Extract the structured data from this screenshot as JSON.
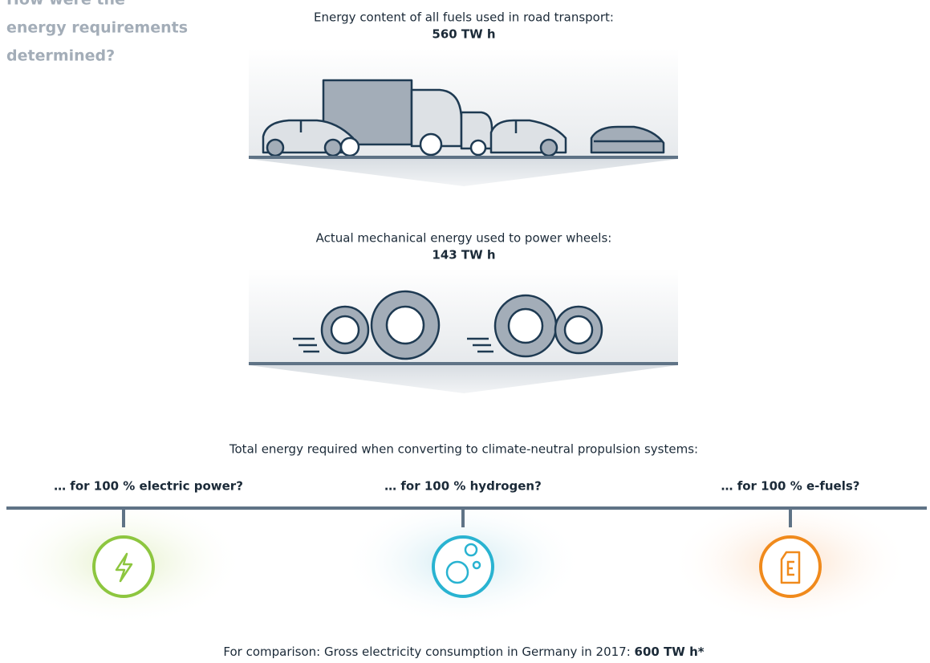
{
  "sidebar": {
    "lines": [
      "How were the",
      "energy requirements",
      "determined?"
    ]
  },
  "step_fuel": {
    "label": "Energy content of all fuels used in road transport:",
    "value": "560 TW h"
  },
  "step_wheels": {
    "label": "Actual mechanical energy used to power wheels:",
    "value": "143 TW h"
  },
  "total": {
    "label": "Total energy required when converting to climate-neutral propulsion systems:"
  },
  "options": [
    "… for 100 % electric power?",
    "… for 100 % hydrogen?",
    "… for 100 % e-fuels?"
  ],
  "footer": {
    "text": "For comparison: Gross electricity consumption in Germany in 2017: ",
    "value": "600 TW h*"
  }
}
